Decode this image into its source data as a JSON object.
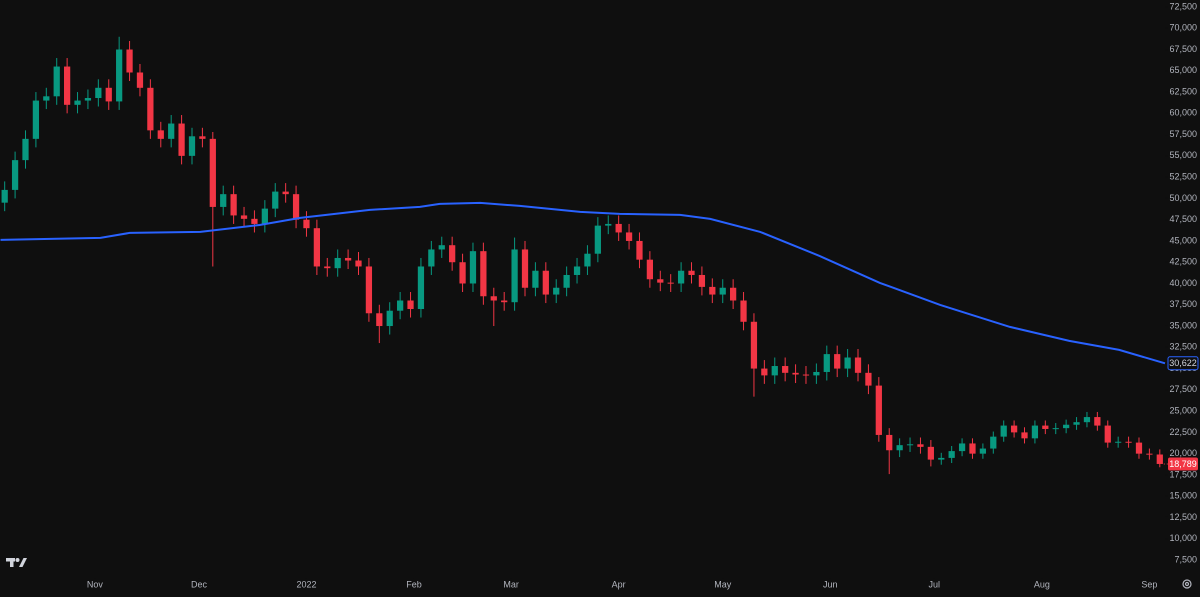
{
  "chart_data": {
    "type": "candlestick",
    "up_color": "#089981",
    "down_color": "#f23645",
    "grid": false,
    "xlim": [
      -0.45,
      111.5
    ],
    "ylim": [
      3740,
      73320
    ],
    "xticks": [
      {
        "value": 8.67,
        "label": "Nov"
      },
      {
        "value": 18.67,
        "label": "Dec"
      },
      {
        "value": 29,
        "label": "2022"
      },
      {
        "value": 39.33,
        "label": "Feb"
      },
      {
        "value": 48.67,
        "label": "Mar"
      },
      {
        "value": 59,
        "label": "Apr"
      },
      {
        "value": 69,
        "label": "May"
      },
      {
        "value": 79.33,
        "label": "Jun"
      },
      {
        "value": 89.33,
        "label": "Jul"
      },
      {
        "value": 99.67,
        "label": "Aug"
      },
      {
        "value": 110,
        "label": "Sep"
      }
    ],
    "yticks": [
      {
        "value": 7500,
        "label": "7,500"
      },
      {
        "value": 10000,
        "label": "10,000"
      },
      {
        "value": 12500,
        "label": "12,500"
      },
      {
        "value": 15000,
        "label": "15,000"
      },
      {
        "value": 17500,
        "label": "17,500"
      },
      {
        "value": 20000,
        "label": "20,000"
      },
      {
        "value": 22500,
        "label": "22,500"
      },
      {
        "value": 25000,
        "label": "25,000"
      },
      {
        "value": 27500,
        "label": "27,500"
      },
      {
        "value": 30000,
        "label": "30,000"
      },
      {
        "value": 32500,
        "label": "32,500"
      },
      {
        "value": 35000,
        "label": "35,000"
      },
      {
        "value": 37500,
        "label": "37,500"
      },
      {
        "value": 40000,
        "label": "40,000"
      },
      {
        "value": 42500,
        "label": "42,500"
      },
      {
        "value": 45000,
        "label": "45,000"
      },
      {
        "value": 47500,
        "label": "47,500"
      },
      {
        "value": 50000,
        "label": "50,000"
      },
      {
        "value": 52500,
        "label": "52,500"
      },
      {
        "value": 55000,
        "label": "55,000"
      },
      {
        "value": 57500,
        "label": "57,500"
      },
      {
        "value": 60000,
        "label": "60,000"
      },
      {
        "value": 62500,
        "label": "62,500"
      },
      {
        "value": 65000,
        "label": "65,000"
      },
      {
        "value": 67500,
        "label": "67,500"
      },
      {
        "value": 70000,
        "label": "70,000"
      },
      {
        "value": 72500,
        "label": "72,500"
      }
    ],
    "open": [
      49500,
      51000,
      54500,
      57000,
      61500,
      62000,
      65500,
      61000,
      61500,
      61800,
      63000,
      61400,
      67500,
      64800,
      63000,
      58000,
      57000,
      58800,
      55000,
      57300,
      57000,
      49000,
      50500,
      48000,
      47600,
      47000,
      48800,
      50800,
      50500,
      47500,
      46500,
      42000,
      41800,
      43000,
      42700,
      42000,
      36500,
      35000,
      36800,
      38000,
      37000,
      42000,
      44000,
      44500,
      42500,
      40000,
      43800,
      38500,
      38000,
      37800,
      44000,
      39500,
      41500,
      38700,
      39500,
      41000,
      42000,
      43500,
      46800,
      47000,
      46000,
      45000,
      42800,
      40500,
      40100,
      40000,
      41500,
      41000,
      39600,
      38700,
      39500,
      38000,
      35500,
      30000,
      29200,
      30300,
      29500,
      29300,
      29200,
      29600,
      31700,
      30000,
      31300,
      29500,
      28000,
      22200,
      20400,
      21000,
      21100,
      20800,
      19300,
      19500,
      20300,
      21200,
      20000,
      20600,
      22000,
      23300,
      22500,
      21800,
      23300,
      22900,
      23000,
      23400,
      23700,
      24300,
      23300,
      21300,
      21400,
      21300,
      20000,
      19900
    ],
    "high": [
      52000,
      55500,
      58000,
      62500,
      63000,
      66500,
      66500,
      62500,
      62800,
      64000,
      64000,
      69000,
      68500,
      65800,
      64000,
      59000,
      59800,
      59800,
      58300,
      58300,
      57800,
      51500,
      51500,
      49000,
      48600,
      49800,
      51800,
      51800,
      51500,
      48500,
      47500,
      43000,
      44000,
      44000,
      43700,
      43000,
      37500,
      37800,
      39000,
      39000,
      43000,
      45000,
      45500,
      45500,
      43500,
      44800,
      44800,
      39500,
      39000,
      45400,
      45000,
      42500,
      42500,
      40500,
      42000,
      43000,
      44500,
      47800,
      48000,
      48000,
      47000,
      46000,
      43800,
      41500,
      41100,
      42500,
      42500,
      42000,
      40600,
      40500,
      40500,
      39000,
      36500,
      31000,
      31300,
      31300,
      30500,
      30300,
      30600,
      32700,
      32700,
      32300,
      32300,
      30500,
      29000,
      23000,
      21800,
      21900,
      21900,
      21600,
      20100,
      20900,
      21800,
      21800,
      21200,
      22600,
      23900,
      23900,
      23100,
      23900,
      23900,
      23600,
      24000,
      24300,
      24900,
      24900,
      23900,
      22000,
      22000,
      21900,
      20600,
      20500
    ],
    "low": [
      48500,
      50000,
      53500,
      56000,
      60500,
      61000,
      60000,
      60000,
      60500,
      60800,
      60400,
      60400,
      63800,
      62000,
      57000,
      56000,
      56000,
      54000,
      54000,
      56000,
      42000,
      48000,
      47000,
      46600,
      46000,
      46000,
      47800,
      49500,
      46500,
      45500,
      41000,
      40800,
      40800,
      41700,
      41000,
      35500,
      33000,
      34000,
      35800,
      36000,
      36000,
      41000,
      43000,
      41500,
      39000,
      39000,
      37500,
      35000,
      36800,
      36800,
      38500,
      38500,
      37700,
      37700,
      38500,
      40000,
      41000,
      42500,
      45800,
      45000,
      44000,
      41800,
      39500,
      39100,
      39000,
      39000,
      40000,
      38600,
      37700,
      37700,
      37000,
      34500,
      26700,
      28200,
      28200,
      28500,
      28300,
      28200,
      28200,
      28600,
      29000,
      29000,
      28500,
      27000,
      21400,
      17600,
      19600,
      20200,
      20000,
      18500,
      18700,
      18900,
      19700,
      19400,
      19400,
      20000,
      21400,
      21900,
      21200,
      21200,
      22300,
      22300,
      22400,
      22800,
      23100,
      22700,
      20700,
      20700,
      20700,
      19400,
      19300,
      18400
    ],
    "close": [
      51000,
      54500,
      57000,
      61500,
      62000,
      65500,
      61000,
      61500,
      61800,
      63000,
      61400,
      67500,
      64800,
      63000,
      58000,
      57000,
      58800,
      55000,
      57300,
      57000,
      49000,
      50500,
      48000,
      47600,
      47000,
      48800,
      50800,
      50500,
      47500,
      46500,
      42000,
      41800,
      43000,
      42700,
      42000,
      36500,
      35000,
      36800,
      38000,
      37000,
      42000,
      44000,
      44500,
      42500,
      40000,
      43800,
      38500,
      38000,
      37800,
      44000,
      39500,
      41500,
      38700,
      39500,
      41000,
      42000,
      43500,
      46800,
      47000,
      46000,
      45000,
      42800,
      40500,
      40100,
      40000,
      41500,
      41000,
      39600,
      38700,
      39500,
      38000,
      35500,
      30000,
      29200,
      30300,
      29500,
      29300,
      29200,
      29600,
      31700,
      30000,
      31300,
      29500,
      28000,
      22200,
      20400,
      21000,
      21100,
      20800,
      19300,
      19500,
      20300,
      21200,
      20000,
      20600,
      22000,
      23300,
      22500,
      21800,
      23300,
      22900,
      23000,
      23400,
      23700,
      24300,
      23300,
      21300,
      21400,
      21300,
      20000,
      19900,
      18789
    ],
    "last_price_label": "18,789",
    "ma": {
      "color": "#2962ff",
      "x": [
        -0.4,
        9.2,
        12,
        18.8,
        24.5,
        28.4,
        35.1,
        39.9,
        41.8,
        45.7,
        49.5,
        55.3,
        59.1,
        64.9,
        67.8,
        72.6,
        78.3,
        84.1,
        89.9,
        96.6,
        102.3,
        107.1,
        111.5
      ],
      "values": [
        45120,
        45360,
        45950,
        46060,
        46880,
        47710,
        48650,
        49000,
        49350,
        49470,
        49120,
        48410,
        48180,
        48060,
        47590,
        46060,
        43240,
        40070,
        37480,
        34900,
        33250,
        32200,
        30622
      ],
      "last_label": "30,622"
    }
  }
}
